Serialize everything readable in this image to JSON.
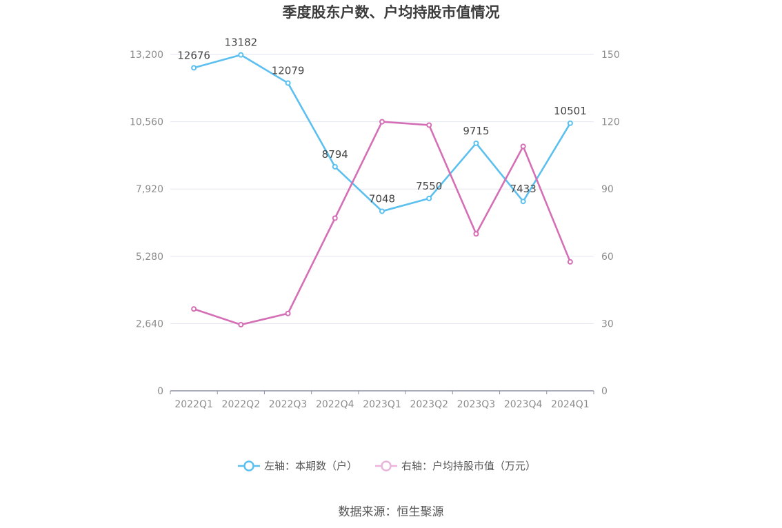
{
  "chart_data": {
    "type": "line",
    "title": "季度股东户数、户均持股市值情况",
    "categories": [
      "2022Q1",
      "2022Q2",
      "2022Q3",
      "2022Q4",
      "2023Q1",
      "2023Q2",
      "2023Q3",
      "2023Q4",
      "2024Q1"
    ],
    "series": [
      {
        "name": "左轴：本期数（户）",
        "axis": "left",
        "color": "#5bc0ef",
        "values": [
          12676,
          13182,
          12079,
          8794,
          7048,
          7550,
          9715,
          7433,
          10501
        ],
        "data_labels": [
          "12676",
          "13182",
          "12079",
          "8794",
          "7048",
          "7550",
          "9715",
          "7433",
          "10501"
        ]
      },
      {
        "name": "右轴：户均持股市值（万元）",
        "axis": "right",
        "color": "#d46fb6",
        "values": [
          36.5,
          29.5,
          34.5,
          77,
          120,
          118.5,
          70,
          109,
          57.5
        ]
      }
    ],
    "y_left": {
      "ylim": [
        0,
        13200
      ],
      "ticks": [
        "0",
        "2,640",
        "5,280",
        "7,920",
        "10,560",
        "13,200"
      ]
    },
    "y_right": {
      "ylim": [
        0,
        150
      ],
      "ticks": [
        "0",
        "30",
        "60",
        "90",
        "120",
        "150"
      ]
    },
    "grid": true,
    "legend_position": "bottom"
  },
  "source": "数据来源：恒生聚源"
}
